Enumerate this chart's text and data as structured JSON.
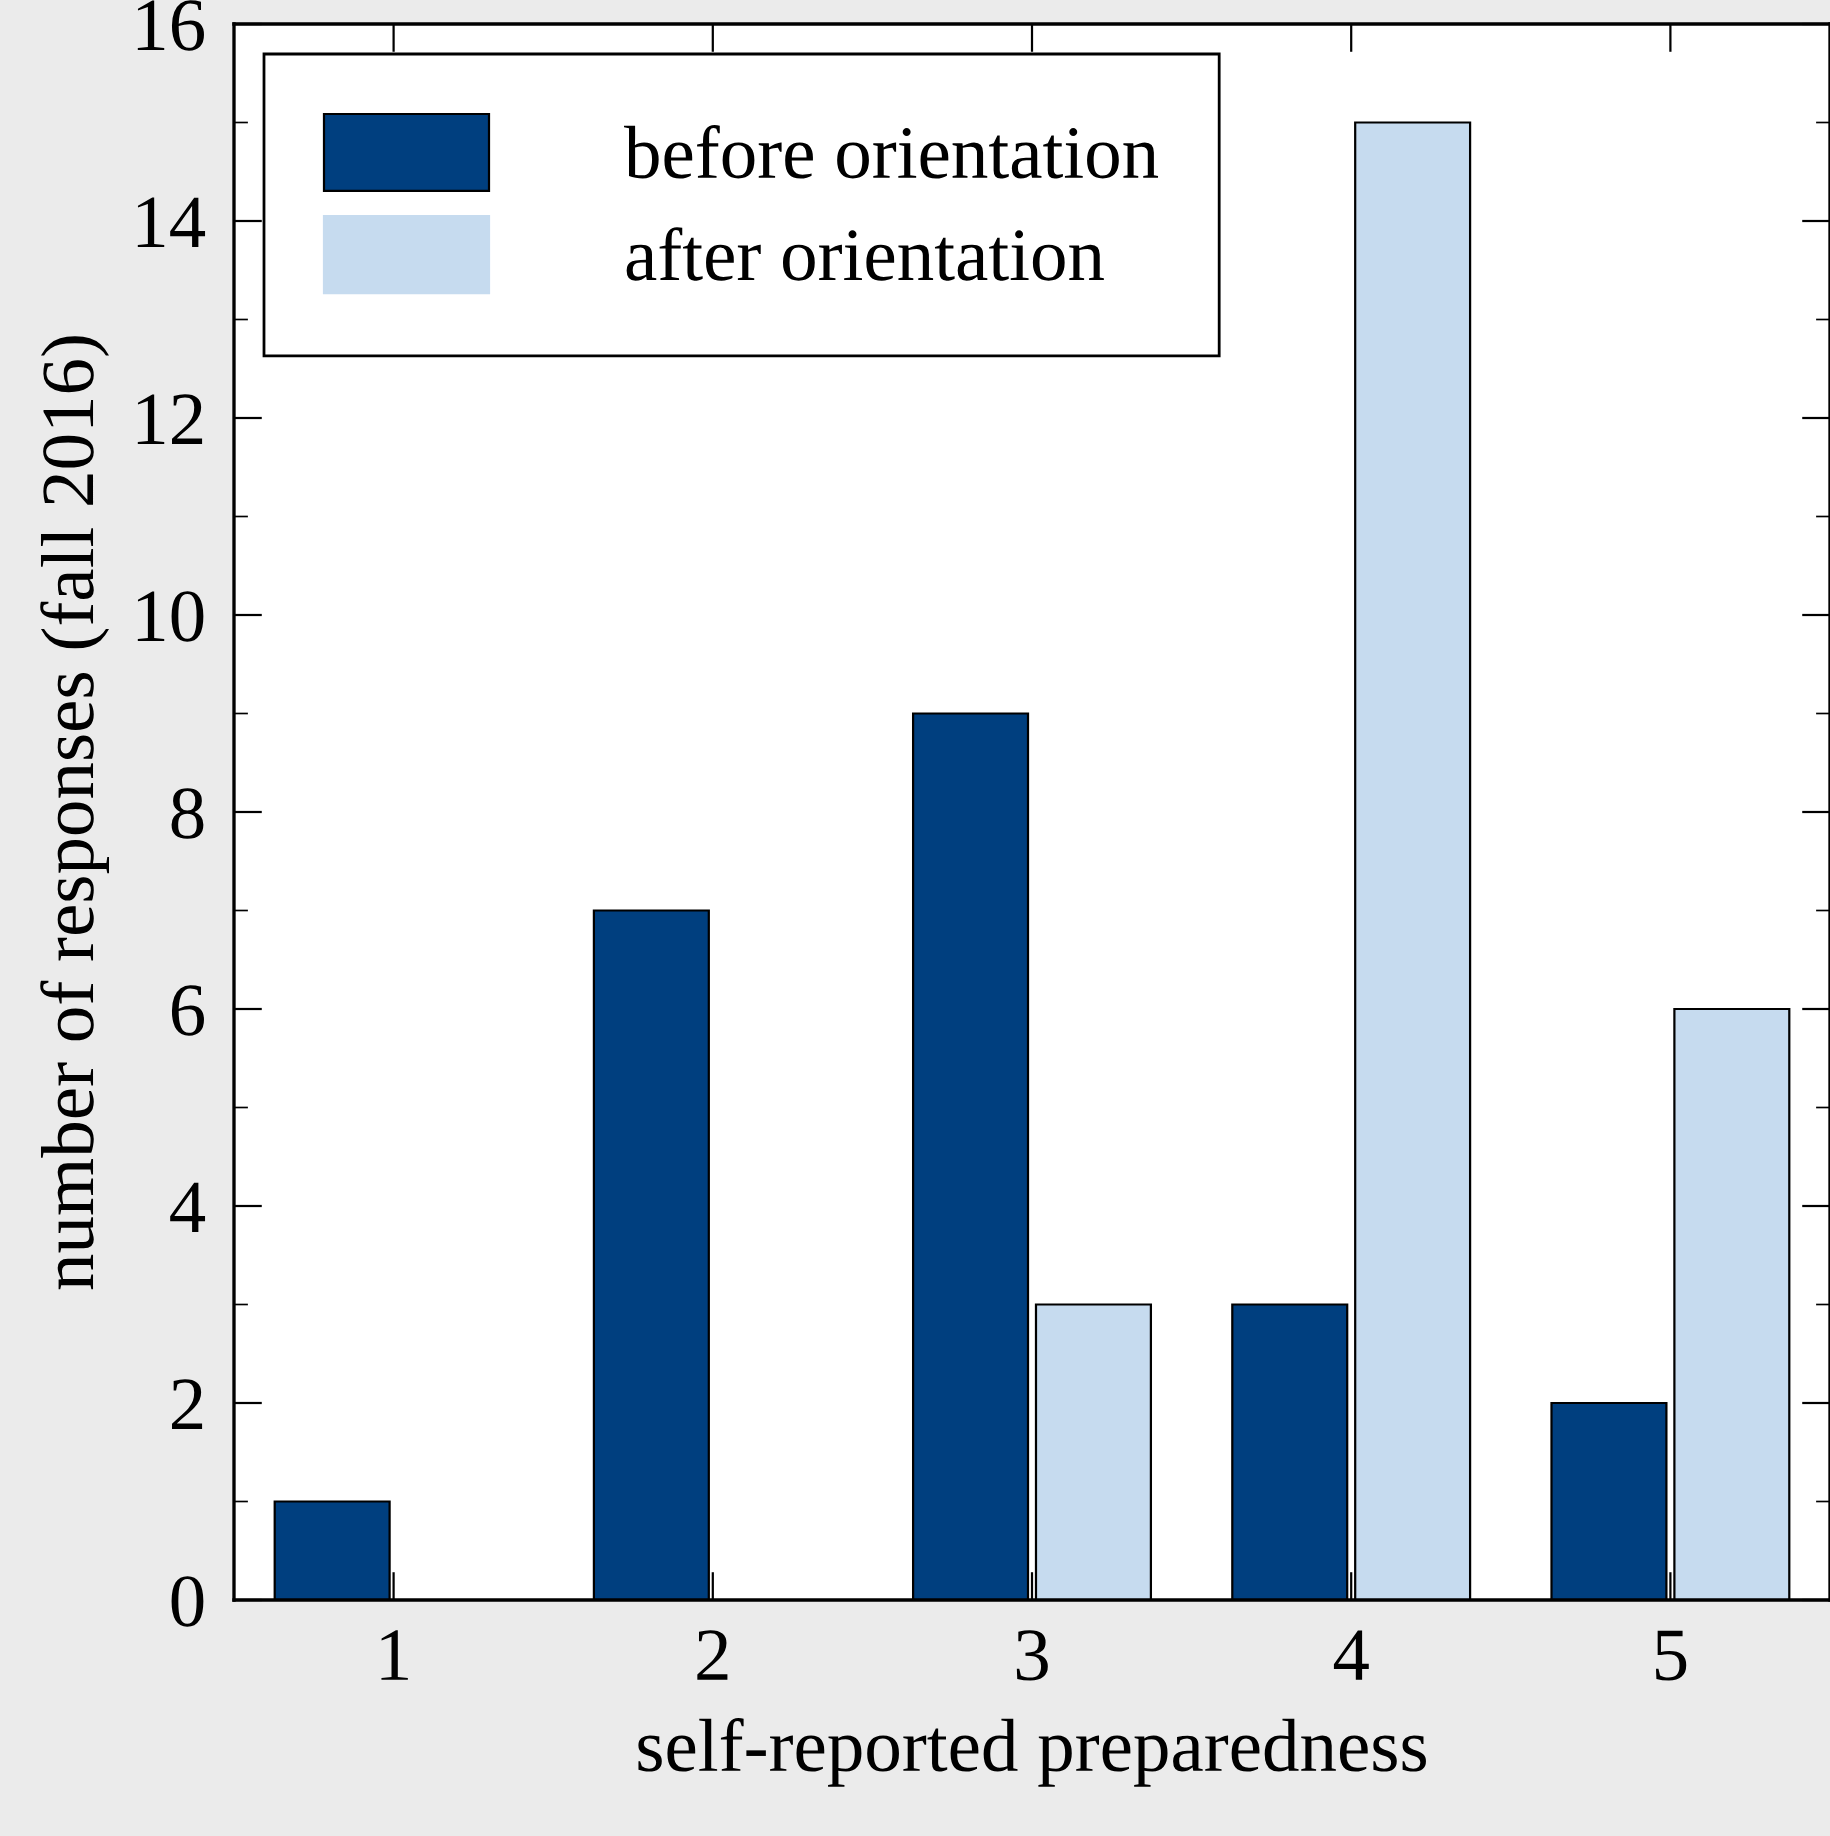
{
  "chart_data": {
    "type": "bar",
    "xlabel": "self-reported preparedness",
    "ylabel": "number of responses (fall 2016)",
    "categories": [
      "1",
      "2",
      "3",
      "4",
      "5"
    ],
    "series": [
      {
        "name": "before orientation",
        "color": "#003f7f",
        "values": [
          1,
          7,
          9,
          3,
          2
        ]
      },
      {
        "name": "after orientation",
        "color": "#c6dbef",
        "values": [
          0,
          0,
          3,
          15,
          6
        ]
      }
    ],
    "ylim": [
      0,
      16
    ],
    "yticks": [
      0,
      2,
      4,
      6,
      8,
      10,
      12,
      14,
      16
    ],
    "grid": false,
    "legend": "top left"
  }
}
